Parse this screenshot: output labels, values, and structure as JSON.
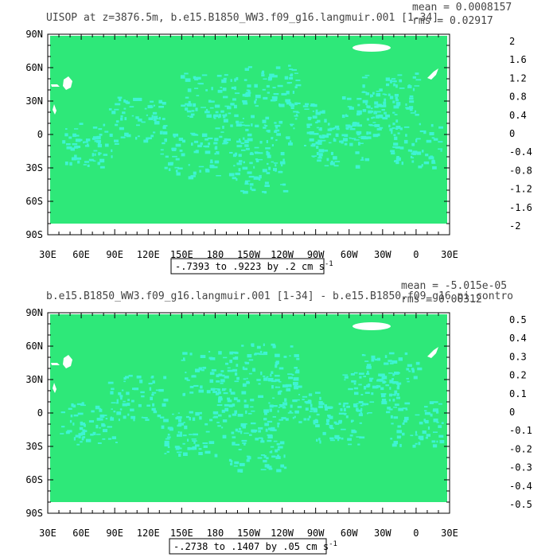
{
  "colors": {
    "ocean_fill": "#2ee879",
    "near_zero_fill": "#3ff3d3",
    "land_fill": "#ffffff",
    "background": "#ffffff"
  },
  "chart_data": [
    {
      "type": "heatmap",
      "title": "UISOP at z=3876.5m, b.e15.B1850_WW3.f09_g16.langmuir.001 [1-34]",
      "mean_label": "mean = 0.0008157",
      "rms_label": "rms = 0.02917",
      "range_label": "-.7393 to .9223 by .2 cm s",
      "range_unit_exp": "-1",
      "x_ticks": [
        "30E",
        "60E",
        "90E",
        "120E",
        "150E",
        "180",
        "150W",
        "120W",
        "90W",
        "60W",
        "30W",
        "0",
        "30E"
      ],
      "y_ticks": [
        "90N",
        "60N",
        "30N",
        "0",
        "30S",
        "60S",
        "90S"
      ],
      "colorbar_labels": [
        "2",
        "1.6",
        "1.2",
        "0.8",
        "0.4",
        "0",
        "-0.4",
        "-0.8",
        "-1.2",
        "-1.6",
        "-2"
      ],
      "colorbar_colors": [
        "#c80000",
        "#e61400",
        "#ff3200",
        "#ff6e00",
        "#ff9b14",
        "#ffb432",
        "#ffdc00",
        "#ffff00",
        "#a0f000",
        "#2ee879",
        "#2ee879",
        "#3ff3d3",
        "#00ffff",
        "#00d2ff",
        "#00b4ff",
        "#0082ff",
        "#0050ff",
        "#0000e6",
        "#8c00d2",
        "#c800c8",
        "#ff32ff",
        "#c8c8c8",
        "#6e6e6e"
      ],
      "value_range": [
        -0.7393,
        0.9223
      ],
      "contour_interval": 0.2
    },
    {
      "type": "heatmap",
      "title": "b.e15.B1850_WW3.f09_g16.langmuir.001 [1-34] - b.e15.B1850.f09_g16.pi_contro",
      "mean_label": "mean = -5.015e-05",
      "rms_label": "rms = 0.00312",
      "range_label": "-.2738 to .1407 by .05 cm s",
      "range_unit_exp": "-1",
      "x_ticks": [
        "30E",
        "60E",
        "90E",
        "120E",
        "150E",
        "180",
        "150W",
        "120W",
        "90W",
        "60W",
        "30W",
        "0",
        "30E"
      ],
      "y_ticks": [
        "90N",
        "60N",
        "30N",
        "0",
        "30S",
        "60S",
        "90S"
      ],
      "colorbar_labels": [
        "0.5",
        "0.4",
        "0.3",
        "0.2",
        "0.1",
        "0",
        "-0.1",
        "-0.2",
        "-0.3",
        "-0.4",
        "-0.5"
      ],
      "colorbar_colors": [
        "#c80000",
        "#e61400",
        "#ff3200",
        "#ff6e00",
        "#ff9b14",
        "#ffb432",
        "#ffdc00",
        "#ffff00",
        "#a0f000",
        "#2ee879",
        "#2ee879",
        "#3ff3d3",
        "#00ffff",
        "#00d2ff",
        "#00b4ff",
        "#0082ff",
        "#0050ff",
        "#0000e6",
        "#8c00d2",
        "#c800c8",
        "#ff32ff",
        "#c8c8c8",
        "#6e6e6e"
      ],
      "value_range": [
        -0.2738,
        0.1407
      ],
      "contour_interval": 0.05
    }
  ]
}
